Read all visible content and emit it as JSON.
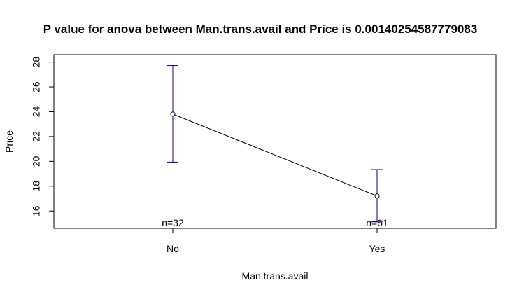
{
  "chart_data": {
    "type": "line",
    "title": "P value for anova between Man.trans.avail  and  Price  is  0.00140254587779083",
    "xlabel": "Man.trans.avail",
    "ylabel": "Price",
    "categories": [
      "No",
      "Yes"
    ],
    "series": [
      {
        "values": [
          23.81,
          17.21
        ],
        "ci_upper": [
          27.72,
          19.34
        ],
        "ci_lower": [
          19.94,
          15.12
        ],
        "counts": [
          "n=32",
          "n=61"
        ]
      }
    ],
    "ylim": [
      14.6,
      28.6
    ],
    "yticks": [
      16,
      18,
      20,
      22,
      24,
      26,
      28
    ],
    "grid": false,
    "legend": "none",
    "colors": {
      "line": "#000000",
      "error_bars": "#00008b"
    }
  }
}
